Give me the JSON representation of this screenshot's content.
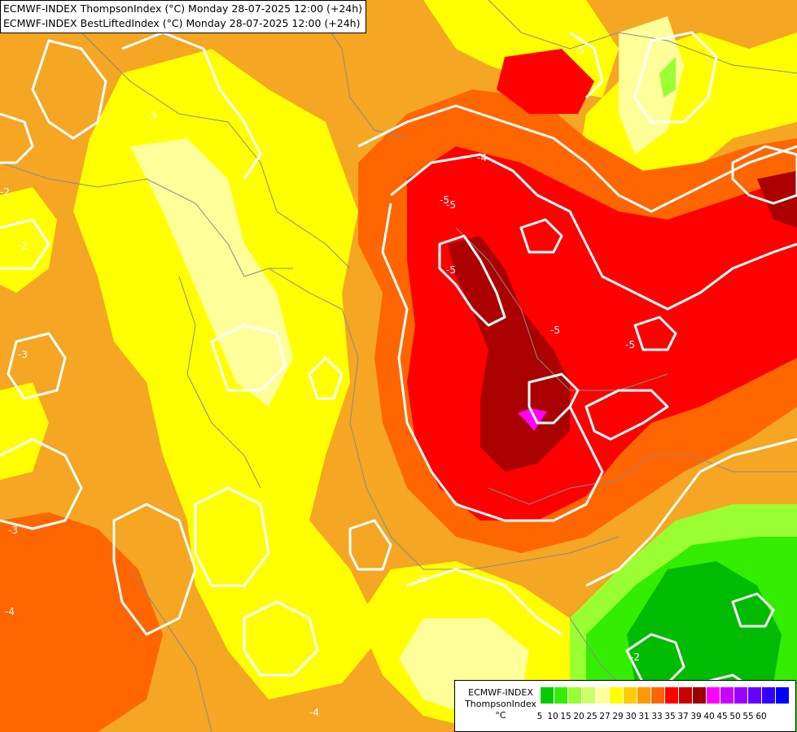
{
  "header": {
    "line1": "ECMWF-INDEX ThompsonIndex (°C) Monday 28-07-2025 12:00 (+24h)",
    "line2": "ECMWF-INDEX BestLiftedIndex (°C) Monday 28-07-2025 12:00 (+24h)"
  },
  "legend": {
    "title_line1": "ECMWF-INDEX",
    "title_line2": "ThompsonIndex",
    "unit": "°C",
    "ticks": [
      "5",
      "10",
      "15",
      "20",
      "25",
      "27",
      "29",
      "30",
      "31",
      "33",
      "35",
      "37",
      "39",
      "40",
      "45",
      "50",
      "55",
      "60"
    ],
    "colors": [
      "#000000",
      "#0d0d0d",
      "#1a1a1a",
      "#2a2a2a",
      "#006600",
      "#009900",
      "#00cc00",
      "#33ee00",
      "#99ff33",
      "#ccff66",
      "#ffff99",
      "#ffff00",
      "#ffcc00",
      "#ff9900",
      "#ff6600",
      "#ff0000",
      "#cc0000",
      "#990000",
      "#ff00ff",
      "#cc00ff",
      "#9900ff",
      "#6600ff",
      "#3300ff",
      "#0000ff"
    ]
  },
  "contour_labels": [
    "-4",
    "-5",
    "-5",
    "-5",
    "-5",
    "-5",
    "-3",
    "-3",
    "-2",
    "-2",
    "-3",
    "-4",
    "-2",
    "-5",
    "-5",
    "-4"
  ]
}
